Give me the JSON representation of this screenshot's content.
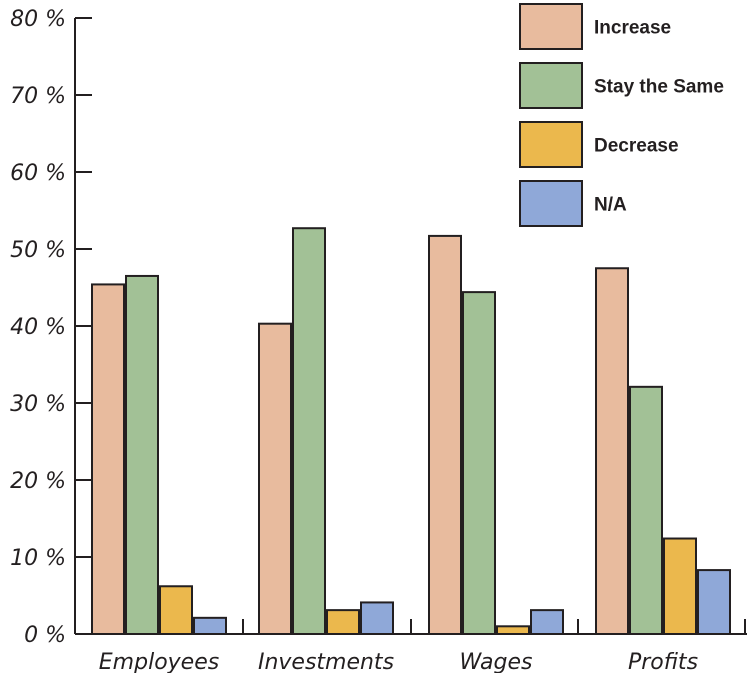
{
  "chart_data": {
    "type": "bar",
    "categories": [
      "Employees",
      "Investments",
      "Wages",
      "Profits"
    ],
    "series": [
      {
        "name": "Increase",
        "color": "#e8bb9e",
        "values": [
          45.4,
          40.3,
          51.7,
          47.5
        ]
      },
      {
        "name": "Stay the Same",
        "color": "#a2c196",
        "values": [
          46.5,
          52.7,
          44.4,
          32.1
        ]
      },
      {
        "name": "Decrease",
        "color": "#ebb84d",
        "values": [
          6.2,
          3.1,
          1.0,
          12.4
        ]
      },
      {
        "name": "N/A",
        "color": "#8fa8d8",
        "values": [
          2.1,
          4.1,
          3.1,
          8.3
        ]
      }
    ],
    "ylim": [
      0,
      80
    ],
    "yticks": [
      0,
      10,
      20,
      30,
      40,
      50,
      60,
      70,
      80
    ],
    "ytick_labels": [
      "0 %",
      "10 %",
      "20 %",
      "30 %",
      "40 %",
      "50 %",
      "60 %",
      "70 %",
      "80 %"
    ],
    "legend_position": "top-right",
    "grid": false
  }
}
